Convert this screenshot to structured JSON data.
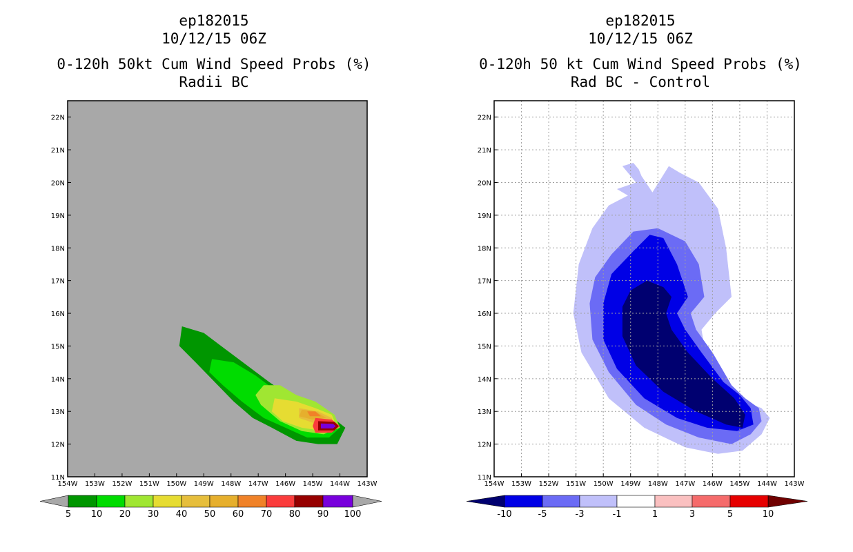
{
  "chart_data": [
    {
      "type": "contour-map",
      "title": [
        "ep182015",
        "10/12/15 06Z",
        "0-120h 50kt Cum Wind Speed Probs (%)",
        "Radii BC"
      ],
      "xlabel": "",
      "ylabel": "",
      "xlim": [
        -154,
        -143
      ],
      "ylim": [
        11,
        22.5
      ],
      "x_tick_labels": [
        "154W",
        "153W",
        "152W",
        "151W",
        "150W",
        "149W",
        "148W",
        "147W",
        "146W",
        "145W",
        "144W",
        "143W"
      ],
      "y_tick_labels": [
        "11N",
        "12N",
        "13N",
        "14N",
        "15N",
        "16N",
        "17N",
        "18N",
        "19N",
        "20N",
        "21N",
        "22N"
      ],
      "background_color": "#a8a8a8",
      "colorbar": {
        "labels": [
          "5",
          "10",
          "20",
          "30",
          "40",
          "50",
          "60",
          "70",
          "80",
          "90",
          "100"
        ],
        "colors": [
          "#009600",
          "#00dc00",
          "#a0e632",
          "#e6dc32",
          "#e6be3c",
          "#e6af2d",
          "#f08228",
          "#fa3c3c",
          "#960000",
          "#7800dc"
        ],
        "end_colors": [
          "#a8a8a8",
          "#a8a8a8"
        ]
      },
      "contours": [
        {
          "level": 5,
          "color": "#009600",
          "polygon": [
            [
              -149.8,
              15.6
            ],
            [
              -149.0,
              15.4
            ],
            [
              -148.2,
              14.9
            ],
            [
              -147.4,
              14.4
            ],
            [
              -146.6,
              13.9
            ],
            [
              -145.9,
              13.5
            ],
            [
              -145.2,
              13.2
            ],
            [
              -144.4,
              12.9
            ],
            [
              -143.8,
              12.5
            ],
            [
              -144.1,
              12.0
            ],
            [
              -144.8,
              12.0
            ],
            [
              -145.6,
              12.1
            ],
            [
              -146.5,
              12.5
            ],
            [
              -147.2,
              12.8
            ],
            [
              -147.9,
              13.3
            ],
            [
              -148.6,
              13.9
            ],
            [
              -149.3,
              14.5
            ],
            [
              -149.9,
              15.0
            ]
          ]
        },
        {
          "level": 10,
          "color": "#00dc00",
          "polygon": [
            [
              -148.7,
              14.6
            ],
            [
              -147.9,
              14.5
            ],
            [
              -147.1,
              14.1
            ],
            [
              -146.3,
              13.6
            ],
            [
              -145.4,
              13.3
            ],
            [
              -144.6,
              12.9
            ],
            [
              -144.0,
              12.5
            ],
            [
              -144.4,
              12.2
            ],
            [
              -145.2,
              12.2
            ],
            [
              -146.0,
              12.5
            ],
            [
              -146.8,
              12.8
            ],
            [
              -147.6,
              13.3
            ],
            [
              -148.3,
              13.8
            ],
            [
              -148.8,
              14.2
            ]
          ]
        },
        {
          "level": 20,
          "color": "#a0e632",
          "polygon": [
            [
              -146.8,
              13.8
            ],
            [
              -146.2,
              13.8
            ],
            [
              -145.6,
              13.5
            ],
            [
              -144.9,
              13.3
            ],
            [
              -144.2,
              12.9
            ],
            [
              -144.0,
              12.5
            ],
            [
              -144.6,
              12.3
            ],
            [
              -145.4,
              12.4
            ],
            [
              -146.2,
              12.7
            ],
            [
              -146.9,
              13.2
            ],
            [
              -147.1,
              13.5
            ]
          ]
        },
        {
          "level": 30,
          "color": "#e6dc32",
          "polygon": [
            [
              -146.4,
              13.4
            ],
            [
              -145.6,
              13.3
            ],
            [
              -144.9,
              13.1
            ],
            [
              -144.3,
              12.9
            ],
            [
              -144.1,
              12.5
            ],
            [
              -144.6,
              12.4
            ],
            [
              -145.4,
              12.5
            ],
            [
              -146.1,
              12.7
            ],
            [
              -146.5,
              13.0
            ]
          ]
        },
        {
          "level": 40,
          "color": "#e6be3c",
          "polygon": [
            [
              -145.5,
              13.1
            ],
            [
              -144.8,
              13.0
            ],
            [
              -144.3,
              12.8
            ],
            [
              -144.2,
              12.5
            ],
            [
              -144.8,
              12.6
            ],
            [
              -145.5,
              12.8
            ]
          ]
        },
        {
          "level": 50,
          "color": "#e6af2d",
          "polygon": [
            [
              -145.4,
              13.05
            ],
            [
              -144.9,
              13.0
            ],
            [
              -144.5,
              12.8
            ],
            [
              -145.0,
              12.75
            ],
            [
              -145.5,
              12.85
            ]
          ]
        },
        {
          "level": 60,
          "color": "#f08228",
          "polygon": [
            [
              -145.2,
              13.0
            ],
            [
              -144.9,
              13.0
            ],
            [
              -144.7,
              12.85
            ],
            [
              -145.1,
              12.85
            ]
          ]
        },
        {
          "level": 70,
          "color": "#fa3c3c",
          "polygon": [
            [
              -144.9,
              12.8
            ],
            [
              -144.3,
              12.75
            ],
            [
              -144.0,
              12.55
            ],
            [
              -144.3,
              12.35
            ],
            [
              -144.9,
              12.35
            ],
            [
              -145.0,
              12.55
            ]
          ]
        },
        {
          "level": 80,
          "color": "#960000",
          "polygon": [
            [
              -144.8,
              12.7
            ],
            [
              -144.2,
              12.68
            ],
            [
              -144.05,
              12.55
            ],
            [
              -144.2,
              12.42
            ],
            [
              -144.8,
              12.42
            ]
          ]
        },
        {
          "level": 90,
          "color": "#7800dc",
          "polygon": [
            [
              -144.7,
              12.63
            ],
            [
              -144.25,
              12.62
            ],
            [
              -144.15,
              12.55
            ],
            [
              -144.25,
              12.48
            ],
            [
              -144.7,
              12.48
            ]
          ]
        }
      ]
    },
    {
      "type": "contour-map",
      "title": [
        "ep182015",
        "10/12/15 06Z",
        "0-120h 50 kt Cum Wind Speed Probs (%)",
        "Rad BC - Control"
      ],
      "xlabel": "",
      "ylabel": "",
      "xlim": [
        -154,
        -143
      ],
      "ylim": [
        11,
        22.5
      ],
      "x_tick_labels": [
        "154W",
        "153W",
        "152W",
        "151W",
        "150W",
        "149W",
        "148W",
        "147W",
        "146W",
        "145W",
        "144W",
        "143W"
      ],
      "y_tick_labels": [
        "11N",
        "12N",
        "13N",
        "14N",
        "15N",
        "16N",
        "17N",
        "18N",
        "19N",
        "20N",
        "21N",
        "22N"
      ],
      "background_color": "#ffffff",
      "colorbar": {
        "labels": [
          "-10",
          "-5",
          "-3",
          "-1",
          "1",
          "3",
          "5",
          "10"
        ],
        "colors": [
          "#0000e6",
          "#6b6bf5",
          "#c0c0fa",
          "#ffffff",
          "#fac0c0",
          "#f56b6b",
          "#e60000"
        ],
        "end_colors": [
          "#000070",
          "#700000"
        ]
      },
      "contours": [
        {
          "level": -1,
          "color": "#c0c0fa",
          "polygon": [
            [
              -149.3,
              20.5
            ],
            [
              -148.9,
              20.6
            ],
            [
              -148.7,
              20.4
            ],
            [
              -148.6,
              20.2
            ],
            [
              -148.2,
              19.7
            ],
            [
              -147.6,
              20.5
            ],
            [
              -147.2,
              20.3
            ],
            [
              -146.5,
              20.0
            ],
            [
              -145.8,
              19.2
            ],
            [
              -145.5,
              18.0
            ],
            [
              -145.3,
              16.5
            ],
            [
              -145.9,
              16.0
            ],
            [
              -146.4,
              15.5
            ],
            [
              -146.2,
              14.5
            ],
            [
              -145.6,
              13.8
            ],
            [
              -144.8,
              13.3
            ],
            [
              -144.2,
              13.1
            ],
            [
              -143.9,
              12.8
            ],
            [
              -144.2,
              12.3
            ],
            [
              -144.9,
              11.8
            ],
            [
              -145.8,
              11.7
            ],
            [
              -147.0,
              11.9
            ],
            [
              -148.5,
              12.5
            ],
            [
              -149.8,
              13.4
            ],
            [
              -150.8,
              14.8
            ],
            [
              -151.1,
              16.0
            ],
            [
              -150.9,
              17.5
            ],
            [
              -150.4,
              18.6
            ],
            [
              -149.8,
              19.3
            ],
            [
              -149.1,
              19.6
            ],
            [
              -149.5,
              19.8
            ],
            [
              -148.8,
              20.0
            ]
          ]
        },
        {
          "level": -3,
          "color": "#6b6bf5",
          "polygon": [
            [
              -149.7,
              17.8
            ],
            [
              -148.9,
              18.5
            ],
            [
              -148.0,
              18.6
            ],
            [
              -147.0,
              18.2
            ],
            [
              -146.5,
              17.5
            ],
            [
              -146.3,
              16.5
            ],
            [
              -146.8,
              16.0
            ],
            [
              -146.6,
              15.5
            ],
            [
              -146.0,
              14.8
            ],
            [
              -145.3,
              13.8
            ],
            [
              -144.8,
              13.4
            ],
            [
              -144.3,
              13.1
            ],
            [
              -144.2,
              12.7
            ],
            [
              -144.6,
              12.3
            ],
            [
              -145.3,
              12.0
            ],
            [
              -146.5,
              12.2
            ],
            [
              -147.7,
              12.6
            ],
            [
              -148.8,
              13.2
            ],
            [
              -149.8,
              14.2
            ],
            [
              -150.4,
              15.2
            ],
            [
              -150.5,
              16.3
            ],
            [
              -150.3,
              17.1
            ]
          ]
        },
        {
          "level": -5,
          "color": "#0000e6",
          "polygon": [
            [
              -149.7,
              17.2
            ],
            [
              -148.9,
              17.9
            ],
            [
              -148.3,
              18.4
            ],
            [
              -147.8,
              18.3
            ],
            [
              -147.3,
              17.5
            ],
            [
              -146.9,
              16.5
            ],
            [
              -147.3,
              16.0
            ],
            [
              -147.0,
              15.5
            ],
            [
              -146.4,
              14.8
            ],
            [
              -145.6,
              13.9
            ],
            [
              -145.0,
              13.5
            ],
            [
              -144.6,
              13.1
            ],
            [
              -144.5,
              12.6
            ],
            [
              -145.1,
              12.4
            ],
            [
              -146.2,
              12.5
            ],
            [
              -147.3,
              12.8
            ],
            [
              -148.5,
              13.4
            ],
            [
              -149.5,
              14.3
            ],
            [
              -150.0,
              15.2
            ],
            [
              -150.0,
              16.3
            ]
          ]
        },
        {
          "level": -10,
          "color": "#000070",
          "polygon": [
            [
              -149.0,
              16.7
            ],
            [
              -148.4,
              17.0
            ],
            [
              -147.8,
              16.8
            ],
            [
              -147.5,
              16.5
            ],
            [
              -147.7,
              16.0
            ],
            [
              -147.5,
              15.5
            ],
            [
              -146.9,
              14.8
            ],
            [
              -146.0,
              14.0
            ],
            [
              -145.2,
              13.4
            ],
            [
              -144.8,
              12.9
            ],
            [
              -144.9,
              12.5
            ],
            [
              -145.5,
              12.6
            ],
            [
              -146.6,
              13.0
            ],
            [
              -147.8,
              13.6
            ],
            [
              -148.8,
              14.4
            ],
            [
              -149.3,
              15.3
            ],
            [
              -149.3,
              16.2
            ]
          ]
        }
      ]
    }
  ]
}
